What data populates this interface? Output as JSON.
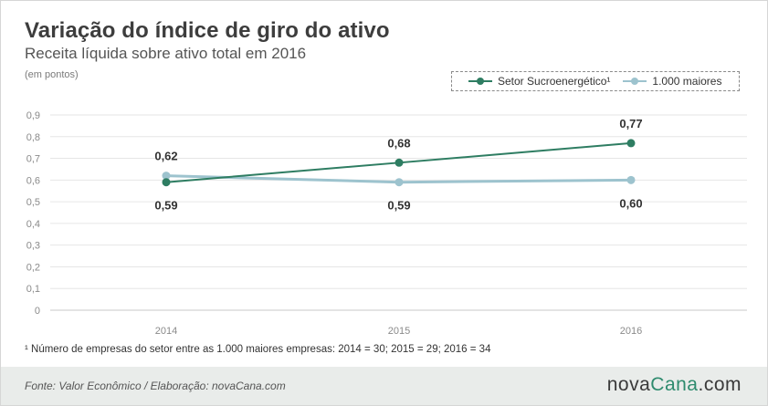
{
  "header": {
    "title": "Variação do índice de giro do ativo",
    "subtitle": "Receita líquida sobre ativo total em 2016",
    "unit": "(em pontos)"
  },
  "colors": {
    "sector": "#2e7d62",
    "top1000": "#9dc3ce",
    "grid": "#e6e6e6",
    "tick": "#8a8a8a"
  },
  "chart_data": {
    "type": "line",
    "x": [
      "2014",
      "2015",
      "2016"
    ],
    "series": [
      {
        "name": "Setor Sucroenergético¹",
        "values": [
          0.59,
          0.68,
          0.77
        ],
        "labels": [
          "0,59",
          "0,68",
          "0,77"
        ]
      },
      {
        "name": "1.000 maiores",
        "values": [
          0.62,
          0.59,
          0.6
        ],
        "labels": [
          "0,62",
          "0,59",
          "0,60"
        ]
      }
    ],
    "yticks": [
      "0",
      "0,1",
      "0,2",
      "0,3",
      "0,4",
      "0,5",
      "0,6",
      "0,7",
      "0,8",
      "0,9"
    ],
    "ylim": [
      0,
      0.9
    ],
    "grid": true,
    "legend": "top-right"
  },
  "footnote": "¹ Número de empresas do setor entre as 1.000 maiores empresas: 2014 = 30; 2015 = 29; 2016 = 34",
  "footer": {
    "source": "Fonte: Valor Econômico / Elaboração: novaCana.com",
    "brand_main": "nova",
    "brand_accent": "Cana",
    "brand_suffix": ".com"
  }
}
